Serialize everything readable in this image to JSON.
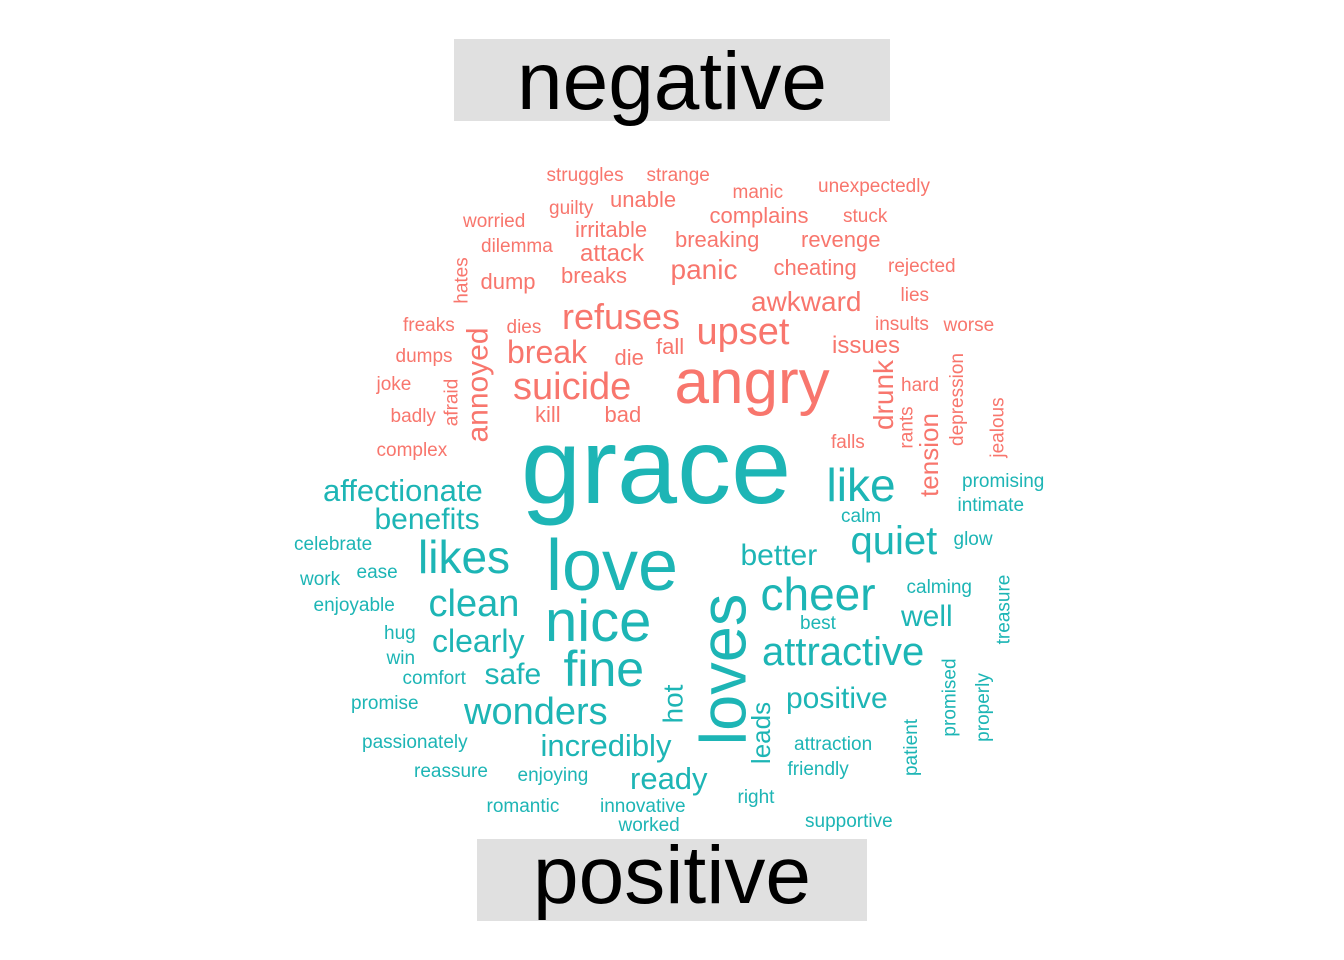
{
  "chart_data": {
    "type": "wordcloud",
    "groups": [
      {
        "name": "negative",
        "color": "#F8766D"
      },
      {
        "name": "positive",
        "color": "#1DB5B5"
      }
    ],
    "words": [
      {
        "text": "grace",
        "group": "positive",
        "weight": 100
      },
      {
        "text": "angry",
        "group": "negative",
        "weight": 62
      },
      {
        "text": "love",
        "group": "positive",
        "weight": 72
      },
      {
        "text": "loves",
        "group": "positive",
        "weight": 65
      },
      {
        "text": "nice",
        "group": "positive",
        "weight": 58
      },
      {
        "text": "fine",
        "group": "positive",
        "weight": 50
      },
      {
        "text": "likes",
        "group": "positive",
        "weight": 46
      },
      {
        "text": "like",
        "group": "positive",
        "weight": 46
      },
      {
        "text": "cheer",
        "group": "positive",
        "weight": 46
      },
      {
        "text": "attractive",
        "group": "positive",
        "weight": 40
      },
      {
        "text": "quiet",
        "group": "positive",
        "weight": 40
      },
      {
        "text": "clean",
        "group": "positive",
        "weight": 38
      },
      {
        "text": "wonders",
        "group": "positive",
        "weight": 38
      },
      {
        "text": "upset",
        "group": "negative",
        "weight": 38
      },
      {
        "text": "suicide",
        "group": "negative",
        "weight": 38
      },
      {
        "text": "refuses",
        "group": "negative",
        "weight": 36
      },
      {
        "text": "clearly",
        "group": "positive",
        "weight": 32
      },
      {
        "text": "affectionate",
        "group": "positive",
        "weight": 31
      },
      {
        "text": "incredibly",
        "group": "positive",
        "weight": 31
      },
      {
        "text": "ready",
        "group": "positive",
        "weight": 31
      },
      {
        "text": "positive",
        "group": "positive",
        "weight": 30
      },
      {
        "text": "better",
        "group": "positive",
        "weight": 30
      },
      {
        "text": "benefits",
        "group": "positive",
        "weight": 30
      },
      {
        "text": "safe",
        "group": "positive",
        "weight": 30
      },
      {
        "text": "well",
        "group": "positive",
        "weight": 30
      },
      {
        "text": "break",
        "group": "negative",
        "weight": 32
      },
      {
        "text": "annoyed",
        "group": "negative",
        "weight": 30
      },
      {
        "text": "awkward",
        "group": "negative",
        "weight": 28
      },
      {
        "text": "panic",
        "group": "negative",
        "weight": 28
      },
      {
        "text": "drunk",
        "group": "negative",
        "weight": 28
      },
      {
        "text": "hot",
        "group": "positive",
        "weight": 28
      },
      {
        "text": "leads",
        "group": "positive",
        "weight": 26
      },
      {
        "text": "tension",
        "group": "negative",
        "weight": 26
      },
      {
        "text": "attack",
        "group": "negative",
        "weight": 24
      },
      {
        "text": "issues",
        "group": "negative",
        "weight": 24
      },
      {
        "text": "revenge",
        "group": "negative",
        "weight": 22
      },
      {
        "text": "cheating",
        "group": "negative",
        "weight": 22
      },
      {
        "text": "complains",
        "group": "negative",
        "weight": 22
      },
      {
        "text": "breaking",
        "group": "negative",
        "weight": 22
      },
      {
        "text": "unable",
        "group": "negative",
        "weight": 22
      },
      {
        "text": "irritable",
        "group": "negative",
        "weight": 22
      },
      {
        "text": "fall",
        "group": "negative",
        "weight": 22
      },
      {
        "text": "die",
        "group": "negative",
        "weight": 22
      },
      {
        "text": "bad",
        "group": "negative",
        "weight": 22
      },
      {
        "text": "kill",
        "group": "negative",
        "weight": 22
      },
      {
        "text": "dump",
        "group": "negative",
        "weight": 22
      },
      {
        "text": "breaks",
        "group": "negative",
        "weight": 22
      },
      {
        "text": "struggles",
        "group": "negative",
        "weight": 19
      },
      {
        "text": "strange",
        "group": "negative",
        "weight": 19
      },
      {
        "text": "manic",
        "group": "negative",
        "weight": 19
      },
      {
        "text": "unexpectedly",
        "group": "negative",
        "weight": 19
      },
      {
        "text": "stuck",
        "group": "negative",
        "weight": 19
      },
      {
        "text": "rejected",
        "group": "negative",
        "weight": 19
      },
      {
        "text": "lies",
        "group": "negative",
        "weight": 19
      },
      {
        "text": "worse",
        "group": "negative",
        "weight": 19
      },
      {
        "text": "insults",
        "group": "negative",
        "weight": 19
      },
      {
        "text": "hard",
        "group": "negative",
        "weight": 19
      },
      {
        "text": "rants",
        "group": "negative",
        "weight": 19
      },
      {
        "text": "falls",
        "group": "negative",
        "weight": 19
      },
      {
        "text": "depression",
        "group": "negative",
        "weight": 19
      },
      {
        "text": "jealous",
        "group": "negative",
        "weight": 19
      },
      {
        "text": "worried",
        "group": "negative",
        "weight": 19
      },
      {
        "text": "guilty",
        "group": "negative",
        "weight": 19
      },
      {
        "text": "dilemma",
        "group": "negative",
        "weight": 19
      },
      {
        "text": "hates",
        "group": "negative",
        "weight": 19
      },
      {
        "text": "freaks",
        "group": "negative",
        "weight": 19
      },
      {
        "text": "dies",
        "group": "negative",
        "weight": 19
      },
      {
        "text": "dumps",
        "group": "negative",
        "weight": 19
      },
      {
        "text": "joke",
        "group": "negative",
        "weight": 19
      },
      {
        "text": "afraid",
        "group": "negative",
        "weight": 19
      },
      {
        "text": "badly",
        "group": "negative",
        "weight": 19
      },
      {
        "text": "complex",
        "group": "negative",
        "weight": 19
      },
      {
        "text": "promising",
        "group": "positive",
        "weight": 19
      },
      {
        "text": "intimate",
        "group": "positive",
        "weight": 19
      },
      {
        "text": "glow",
        "group": "positive",
        "weight": 19
      },
      {
        "text": "calm",
        "group": "positive",
        "weight": 19
      },
      {
        "text": "calming",
        "group": "positive",
        "weight": 19
      },
      {
        "text": "treasure",
        "group": "positive",
        "weight": 19
      },
      {
        "text": "best",
        "group": "positive",
        "weight": 19
      },
      {
        "text": "promised",
        "group": "positive",
        "weight": 19
      },
      {
        "text": "properly",
        "group": "positive",
        "weight": 19
      },
      {
        "text": "patient",
        "group": "positive",
        "weight": 19
      },
      {
        "text": "attraction",
        "group": "positive",
        "weight": 19
      },
      {
        "text": "friendly",
        "group": "positive",
        "weight": 19
      },
      {
        "text": "right",
        "group": "positive",
        "weight": 19
      },
      {
        "text": "supportive",
        "group": "positive",
        "weight": 19
      },
      {
        "text": "worked",
        "group": "positive",
        "weight": 19
      },
      {
        "text": "innovative",
        "group": "positive",
        "weight": 19
      },
      {
        "text": "romantic",
        "group": "positive",
        "weight": 19
      },
      {
        "text": "enjoying",
        "group": "positive",
        "weight": 19
      },
      {
        "text": "reassure",
        "group": "positive",
        "weight": 19
      },
      {
        "text": "passionately",
        "group": "positive",
        "weight": 19
      },
      {
        "text": "promise",
        "group": "positive",
        "weight": 19
      },
      {
        "text": "comfort",
        "group": "positive",
        "weight": 19
      },
      {
        "text": "win",
        "group": "positive",
        "weight": 19
      },
      {
        "text": "hug",
        "group": "positive",
        "weight": 19
      },
      {
        "text": "enjoyable",
        "group": "positive",
        "weight": 19
      },
      {
        "text": "work",
        "group": "positive",
        "weight": 19
      },
      {
        "text": "ease",
        "group": "positive",
        "weight": 19
      },
      {
        "text": "celebrate",
        "group": "positive",
        "weight": 19
      }
    ]
  }
}
